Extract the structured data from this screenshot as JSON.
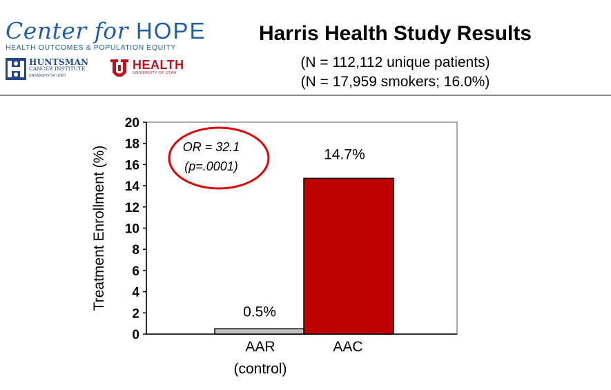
{
  "header": {
    "logo": {
      "center_for": "Center for ",
      "hope": "HOPE",
      "subtitle": "HEALTH OUTCOMES & POPULATION EQUITY",
      "huntsman_name": "HUNTSMAN",
      "huntsman_sub": "CANCER INSTITUTE",
      "huntsman_sub2": "UNIVERSITY OF UTAH",
      "health_name": "HEALTH",
      "health_sub": "UNIVERSITY OF UTAH"
    },
    "title": "Harris Health Study Results",
    "subtitle_1": "(N = 112,112 unique patients)",
    "subtitle_2": "(N = 17,959 smokers; 16.0%)"
  },
  "colors": {
    "logo_blue": "#1f5fa3",
    "utah_red": "#c0111f",
    "bar_control": "#c0c0c0",
    "bar_treatment": "#c00000",
    "annotation_ellipse": "#e00000"
  },
  "chart_data": {
    "type": "bar",
    "categories": [
      "AAR\n(control)",
      "AAC"
    ],
    "values": [
      0.5,
      14.7
    ],
    "data_labels": [
      "0.5%",
      "14.7%"
    ],
    "title": "",
    "xlabel": "",
    "ylabel": "Treatment Enrollment (%)",
    "ylim": [
      0,
      20
    ],
    "yticks": [
      0,
      2,
      4,
      6,
      8,
      10,
      12,
      14,
      16,
      18,
      20
    ],
    "grid": false,
    "legend": "none",
    "annotation": {
      "lines": [
        "OR = 32.1",
        "(p=.0001)"
      ]
    }
  }
}
